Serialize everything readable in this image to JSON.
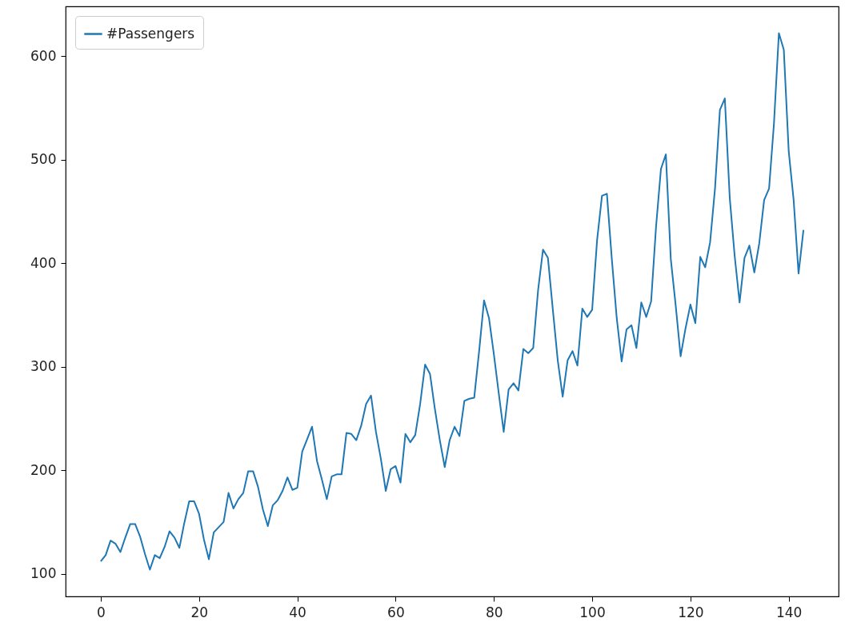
{
  "chart_data": {
    "type": "line",
    "x": [
      0,
      1,
      2,
      3,
      4,
      5,
      6,
      7,
      8,
      9,
      10,
      11,
      12,
      13,
      14,
      15,
      16,
      17,
      18,
      19,
      20,
      21,
      22,
      23,
      24,
      25,
      26,
      27,
      28,
      29,
      30,
      31,
      32,
      33,
      34,
      35,
      36,
      37,
      38,
      39,
      40,
      41,
      42,
      43,
      44,
      45,
      46,
      47,
      48,
      49,
      50,
      51,
      52,
      53,
      54,
      55,
      56,
      57,
      58,
      59,
      60,
      61,
      62,
      63,
      64,
      65,
      66,
      67,
      68,
      69,
      70,
      71,
      72,
      73,
      74,
      75,
      76,
      77,
      78,
      79,
      80,
      81,
      82,
      83,
      84,
      85,
      86,
      87,
      88,
      89,
      90,
      91,
      92,
      93,
      94,
      95,
      96,
      97,
      98,
      99,
      100,
      101,
      102,
      103,
      104,
      105,
      106,
      107,
      108,
      109,
      110,
      111,
      112,
      113,
      114,
      115,
      116,
      117,
      118,
      119,
      120,
      121,
      122,
      123,
      124,
      125,
      126,
      127,
      128,
      129,
      130,
      131,
      132,
      133,
      134,
      135,
      136,
      137,
      138,
      139,
      140,
      141,
      142,
      143
    ],
    "series": [
      {
        "name": "#Passengers",
        "color": "#1f77b4",
        "values": [
          112,
          118,
          132,
          129,
          121,
          135,
          148,
          148,
          136,
          119,
          104,
          118,
          115,
          126,
          141,
          135,
          125,
          149,
          170,
          170,
          158,
          133,
          114,
          140,
          145,
          150,
          178,
          163,
          172,
          178,
          199,
          199,
          184,
          162,
          146,
          166,
          171,
          180,
          193,
          181,
          183,
          218,
          230,
          242,
          209,
          191,
          172,
          194,
          196,
          196,
          236,
          235,
          229,
          243,
          264,
          272,
          237,
          211,
          180,
          201,
          204,
          188,
          235,
          227,
          234,
          264,
          302,
          293,
          259,
          229,
          203,
          229,
          242,
          233,
          267,
          269,
          270,
          315,
          364,
          347,
          312,
          274,
          237,
          278,
          284,
          277,
          317,
          313,
          318,
          374,
          413,
          405,
          355,
          306,
          271,
          306,
          315,
          301,
          356,
          348,
          355,
          422,
          465,
          467,
          404,
          347,
          305,
          336,
          340,
          318,
          362,
          348,
          363,
          435,
          491,
          505,
          404,
          359,
          310,
          337,
          360,
          342,
          406,
          396,
          420,
          472,
          548,
          559,
          463,
          407,
          362,
          405,
          417,
          391,
          419,
          461,
          472,
          535,
          622,
          606,
          508,
          461,
          390,
          432
        ]
      }
    ],
    "xlim": [
      -7.15,
      150.15
    ],
    "xticks": [
      0,
      20,
      40,
      60,
      80,
      100,
      120,
      140
    ],
    "ylim": [
      78.1,
      647.9
    ],
    "yticks": [
      100,
      200,
      300,
      400,
      500,
      600
    ],
    "grid": false,
    "legend": "top left"
  }
}
